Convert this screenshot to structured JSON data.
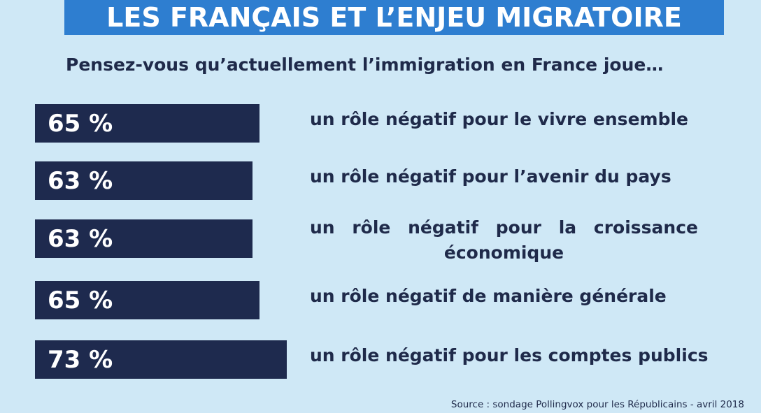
{
  "title": "LES FRANÇAIS ET L’ENJEU MIGRATOIRE",
  "question": "Pensez-vous qu’actuellement l’immigration en France joue…",
  "source": "Source : sondage Pollingvox pour les Républicains - avril 2018",
  "colors": {
    "background": "#cfe8f6",
    "banner": "#2e7ed0",
    "bar": "#1e2a4e",
    "text": "#1f2a4a"
  },
  "chart_data": {
    "type": "bar",
    "orientation": "horizontal",
    "unit": "%",
    "categories": [
      "un rôle négatif pour le vivre ensemble",
      "un rôle négatif pour l’avenir du pays",
      "un rôle négatif pour la croissance économique",
      "un rôle négatif de manière générale",
      "un rôle négatif pour les comptes publics"
    ],
    "values": [
      65,
      63,
      63,
      65,
      73
    ],
    "value_labels": [
      "65 %",
      "63 %",
      "63 %",
      "65 %",
      "73 %"
    ]
  }
}
